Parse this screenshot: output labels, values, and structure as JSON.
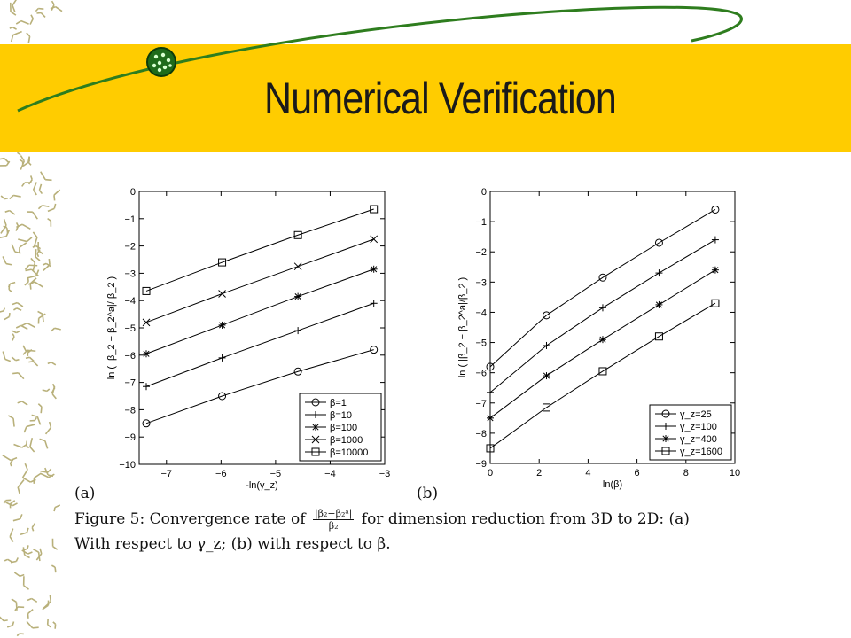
{
  "slide": {
    "title": "Numerical Verification",
    "colors": {
      "band": "#ffcc00",
      "swoosh": "#2e7d1e",
      "pattern": "#b8b07a"
    },
    "logo_icon": "green-ball-icon"
  },
  "figure": {
    "panel_a_tag": "(a)",
    "panel_b_tag": "(b)",
    "caption": {
      "line1_prefix": "Figure 5:  Convergence rate of",
      "frac_num": "|β₂−β₂ᵃ|",
      "frac_den": "β₂",
      "line1_suffix": "for dimension reduction from 3D to 2D: (a)",
      "line2": "With respect to γ_z; (b) with respect to β."
    }
  },
  "chart_data": [
    {
      "type": "line",
      "xlabel": "-ln(γ_z)",
      "ylabel": "ln ( |β_2 − β_2^a|/ β_2 )",
      "xlim": [
        -7.5,
        -3
      ],
      "ylim": [
        -10,
        0
      ],
      "xticks": [
        -7,
        -6,
        -5,
        -4,
        -3
      ],
      "xtick_labels": [
        "−7",
        "−6",
        "−5",
        "−4",
        "−3"
      ],
      "yticks": [
        0,
        -1,
        -2,
        -3,
        -4,
        -5,
        -6,
        -7,
        -8,
        -9,
        -10
      ],
      "ytick_labels": [
        "0",
        "−1",
        "−2",
        "−3",
        "−4",
        "−5",
        "−6",
        "−7",
        "−8",
        "−9",
        "−10"
      ],
      "grid": false,
      "legend_position": "bottom-right",
      "x": [
        -7.37,
        -5.98,
        -4.59,
        -3.2
      ],
      "series": [
        {
          "name": "β=1",
          "marker": "circle",
          "values": [
            -8.5,
            -7.5,
            -6.6,
            -5.8
          ]
        },
        {
          "name": "β=10",
          "marker": "plus",
          "values": [
            -7.15,
            -6.1,
            -5.1,
            -4.1
          ]
        },
        {
          "name": "β=100",
          "marker": "star",
          "values": [
            -5.95,
            -4.9,
            -3.85,
            -2.85
          ]
        },
        {
          "name": "β=1000",
          "marker": "x",
          "values": [
            -4.8,
            -3.75,
            -2.75,
            -1.75
          ]
        },
        {
          "name": "β=10000",
          "marker": "square",
          "values": [
            -3.65,
            -2.6,
            -1.6,
            -0.65
          ]
        }
      ]
    },
    {
      "type": "line",
      "xlabel": "ln(β)",
      "ylabel": "ln ( |β_2 − β_2^a|/β_2 )",
      "xlim": [
        0,
        10
      ],
      "ylim": [
        -9,
        0
      ],
      "xticks": [
        0,
        2,
        4,
        6,
        8,
        10
      ],
      "xtick_labels": [
        "0",
        "2",
        "4",
        "6",
        "8",
        "10"
      ],
      "yticks": [
        0,
        -1,
        -2,
        -3,
        -4,
        -5,
        -6,
        -7,
        -8,
        -9
      ],
      "ytick_labels": [
        "0",
        "−1",
        "−2",
        "−3",
        "−4",
        "−5",
        "−6",
        "−7",
        "−8",
        "−9"
      ],
      "grid": false,
      "legend_position": "bottom-right",
      "x": [
        0,
        2.3,
        4.6,
        6.9,
        9.2
      ],
      "series": [
        {
          "name": "γ_z=25",
          "marker": "circle",
          "values": [
            -5.8,
            -4.1,
            -2.85,
            -1.7,
            -0.6
          ]
        },
        {
          "name": "γ_z=100",
          "marker": "plus",
          "values": [
            -6.65,
            -5.1,
            -3.85,
            -2.7,
            -1.6
          ]
        },
        {
          "name": "γ_z=400",
          "marker": "star",
          "values": [
            -7.5,
            -6.1,
            -4.9,
            -3.75,
            -2.6
          ]
        },
        {
          "name": "γ_z=1600",
          "marker": "square",
          "values": [
            -8.5,
            -7.15,
            -5.95,
            -4.8,
            -3.7
          ]
        }
      ]
    }
  ]
}
